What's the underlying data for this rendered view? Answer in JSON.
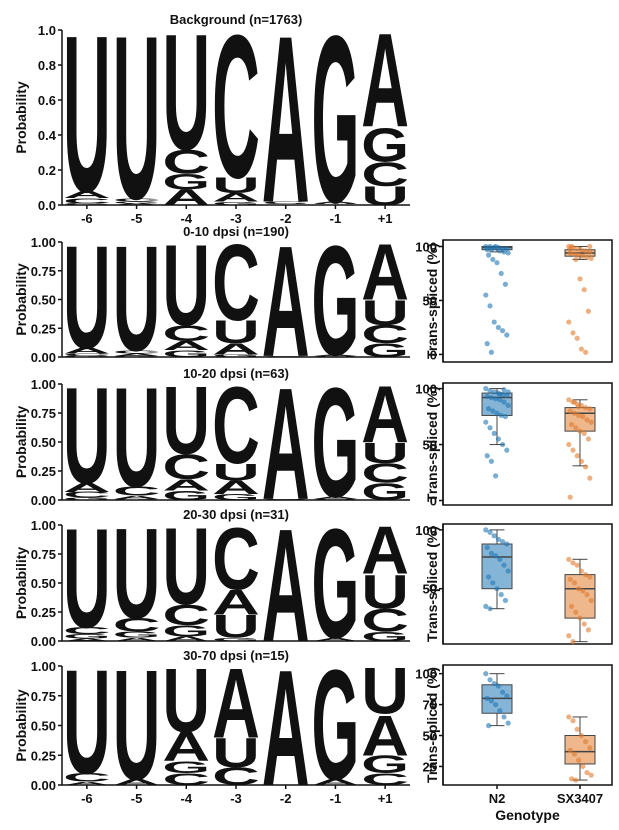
{
  "chart_data": [
    {
      "type": "logo",
      "title": "Background (n=1763)",
      "ylabel": "Probability",
      "categories": [
        "-6",
        "-5",
        "-4",
        "-3",
        "-2",
        "-1",
        "+1"
      ],
      "ylim": [
        0,
        1
      ],
      "yticks": [
        {
          "value": 0,
          "label": "0.0"
        },
        0.2,
        0.4,
        0.6,
        0.8,
        {
          "value": 1,
          "label": "1.0"
        }
      ],
      "series": [
        {
          "name": "A",
          "color": "#0d9e5c",
          "values": [
            0.04,
            0.01,
            0.09,
            0.05,
            0.98,
            0.01,
            0.55
          ]
        },
        {
          "name": "C",
          "color": "#1b74b8",
          "values": [
            0.03,
            0.02,
            0.14,
            0.84,
            0.01,
            0.005,
            0.14
          ]
        },
        {
          "name": "G",
          "color": "#f3e24b",
          "values": [
            0.01,
            0.01,
            0.09,
            0.02,
            0.005,
            0.98,
            0.2
          ]
        },
        {
          "name": "U",
          "color": "#d45f00",
          "values": [
            0.92,
            0.96,
            0.68,
            0.09,
            0.005,
            0.005,
            0.11
          ]
        }
      ]
    },
    {
      "type": "logo",
      "title": "0-10 dpsi (n=190)",
      "ylabel": "Probability",
      "ylim": [
        0,
        1
      ],
      "yticks": [
        {
          "value": 0,
          "label": "0.00"
        },
        0.25,
        {
          "value": 0.5,
          "label": "0.50"
        },
        0.75,
        {
          "value": 1,
          "label": "1.00"
        }
      ],
      "series": [
        {
          "name": "A",
          "color": "#0d9e5c",
          "values": [
            0.05,
            0.02,
            0.08,
            0.1,
            0.99,
            0.01,
            0.5
          ]
        },
        {
          "name": "C",
          "color": "#1b74b8",
          "values": [
            0.02,
            0.03,
            0.14,
            0.68,
            0.005,
            0.005,
            0.16
          ]
        },
        {
          "name": "G",
          "color": "#f3e24b",
          "values": [
            0.01,
            0.01,
            0.06,
            0.02,
            0.003,
            0.98,
            0.12
          ]
        },
        {
          "name": "U",
          "color": "#d45f00",
          "values": [
            0.92,
            0.94,
            0.72,
            0.2,
            0.002,
            0.005,
            0.22
          ]
        }
      ]
    },
    {
      "type": "box",
      "ylabel": "Trans-spliced (%)",
      "ylim": [
        -7,
        106
      ],
      "yticks": [
        0,
        50,
        100
      ],
      "boxes": [
        {
          "color": "#1f77b4",
          "whislo": 95,
          "q1": 97,
          "med": 99,
          "q3": 100,
          "whishi": 100,
          "points": [
            100,
            100,
            99,
            99,
            98,
            98,
            97,
            97,
            100,
            96,
            95,
            94,
            92,
            88,
            85,
            75,
            65,
            55,
            45,
            30,
            25,
            22,
            18,
            10,
            2
          ]
        },
        {
          "color": "#e07b2e",
          "whislo": 88,
          "q1": 91,
          "med": 94,
          "q3": 97,
          "whishi": 100,
          "points": [
            100,
            99,
            98,
            97,
            96,
            95,
            94,
            93,
            92,
            91,
            90,
            89,
            100,
            88,
            70,
            60,
            40,
            30,
            20,
            15,
            5,
            2,
            100,
            98
          ]
        }
      ]
    },
    {
      "type": "logo",
      "title": "10-20 dpsi (n=63)",
      "ylabel": "Probability",
      "ylim": [
        0,
        1
      ],
      "yticks": [
        {
          "value": 0,
          "label": "0.00"
        },
        0.25,
        {
          "value": 0.5,
          "label": "0.50"
        },
        0.75,
        {
          "value": 1,
          "label": "1.00"
        }
      ],
      "series": [
        {
          "name": "A",
          "color": "#0d9e5c",
          "values": [
            0.08,
            0.03,
            0.1,
            0.12,
            0.99,
            0.02,
            0.5
          ]
        },
        {
          "name": "C",
          "color": "#1b74b8",
          "values": [
            0.05,
            0.08,
            0.22,
            0.68,
            0.004,
            0.005,
            0.17
          ]
        },
        {
          "name": "G",
          "color": "#f3e24b",
          "values": [
            0.02,
            0.01,
            0.08,
            0.05,
            0.003,
            0.97,
            0.15
          ]
        },
        {
          "name": "U",
          "color": "#d45f00",
          "values": [
            0.85,
            0.88,
            0.6,
            0.15,
            0.003,
            0.005,
            0.18
          ]
        }
      ]
    },
    {
      "type": "box",
      "ylabel": "Trans-spliced (%)",
      "ylim": [
        -4,
        105
      ],
      "yticks": [
        0,
        50,
        100
      ],
      "boxes": [
        {
          "color": "#1f77b4",
          "whislo": 50,
          "q1": 76,
          "med": 92,
          "q3": 96,
          "whishi": 100,
          "points": [
            100,
            98,
            97,
            96,
            95,
            94,
            93,
            92,
            91,
            90,
            88,
            85,
            82,
            80,
            78,
            76,
            75,
            70,
            65,
            60,
            55,
            50,
            45,
            40,
            35,
            22,
            95,
            99,
            97
          ]
        },
        {
          "color": "#e07b2e",
          "whislo": 31,
          "q1": 62,
          "med": 78,
          "q3": 83,
          "whishi": 90,
          "points": [
            90,
            88,
            86,
            85,
            83,
            82,
            80,
            78,
            76,
            75,
            72,
            70,
            68,
            65,
            62,
            60,
            55,
            50,
            45,
            40,
            35,
            30,
            20,
            3,
            88,
            84
          ]
        }
      ]
    },
    {
      "type": "logo",
      "title": "20-30 dpsi (n=31)",
      "ylabel": "Probability",
      "ylim": [
        0,
        1
      ],
      "yticks": [
        {
          "value": 0,
          "label": "0.00"
        },
        0.25,
        {
          "value": 0.5,
          "label": "0.50"
        },
        0.75,
        {
          "value": 1,
          "label": "1.00"
        }
      ],
      "series": [
        {
          "name": "A",
          "color": "#0d9e5c",
          "values": [
            0.02,
            0.03,
            0.04,
            0.22,
            1,
            0.03,
            0.42
          ]
        },
        {
          "name": "C",
          "color": "#1b74b8",
          "values": [
            0.06,
            0.12,
            0.18,
            0.55,
            0,
            0,
            0.2
          ]
        },
        {
          "name": "G",
          "color": "#f3e24b",
          "values": [
            0.04,
            0.05,
            0.1,
            0.03,
            0,
            0.97,
            0.08
          ]
        },
        {
          "name": "U",
          "color": "#d45f00",
          "values": [
            0.88,
            0.8,
            0.68,
            0.2,
            0,
            0,
            0.3
          ]
        }
      ]
    },
    {
      "type": "box",
      "ylabel": "Trans-spliced (%)",
      "ylim": [
        3,
        105
      ],
      "yticks": [
        50,
        100
      ],
      "boxes": [
        {
          "color": "#1f77b4",
          "whislo": 33,
          "q1": 50,
          "med": 77,
          "q3": 88,
          "whishi": 100,
          "points": [
            100,
            98,
            95,
            92,
            90,
            88,
            85,
            80,
            78,
            75,
            70,
            65,
            60,
            55,
            50,
            45,
            40,
            35,
            33
          ]
        },
        {
          "color": "#e07b2e",
          "whislo": 5,
          "q1": 25,
          "med": 50,
          "q3": 62,
          "whishi": 75,
          "points": [
            75,
            72,
            70,
            65,
            62,
            60,
            58,
            55,
            50,
            48,
            45,
            40,
            35,
            30,
            25,
            20,
            15,
            10,
            5
          ]
        }
      ]
    },
    {
      "type": "logo",
      "title": "30-70 dpsi (n=15)",
      "ylabel": "Probability",
      "categories": [
        "-6",
        "-5",
        "-4",
        "-3",
        "-2",
        "-1",
        "+1"
      ],
      "ylim": [
        0,
        1
      ],
      "yticks": [
        {
          "value": 0,
          "label": "0.00"
        },
        0.25,
        {
          "value": 0.5,
          "label": "0.50"
        },
        0.75,
        {
          "value": 1,
          "label": "1.00"
        }
      ],
      "series": [
        {
          "name": "A",
          "color": "#0d9e5c",
          "values": [
            0.03,
            0.05,
            0.25,
            0.6,
            1,
            0.05,
            0.35
          ]
        },
        {
          "name": "C",
          "color": "#1b74b8",
          "values": [
            0.07,
            0,
            0.1,
            0.15,
            0,
            0,
            0.1
          ]
        },
        {
          "name": "G",
          "color": "#f3e24b",
          "values": [
            0,
            0,
            0.1,
            0,
            0,
            0.95,
            0.15
          ]
        },
        {
          "name": "U",
          "color": "#d45f00",
          "values": [
            0.9,
            0.95,
            0.55,
            0.25,
            0,
            0,
            0.4
          ]
        }
      ]
    },
    {
      "type": "box",
      "ylabel": "Trans-spliced (%)",
      "ylim": [
        10,
        107
      ],
      "yticks": [
        25,
        50,
        75,
        100
      ],
      "categories": [
        "N2",
        "SX3407"
      ],
      "xlabel": "Genotype",
      "boxes": [
        {
          "color": "#1f77b4",
          "whislo": 58,
          "q1": 68,
          "med": 80,
          "q3": 91,
          "whishi": 100,
          "points": [
            100,
            95,
            92,
            90,
            85,
            82,
            80,
            78,
            75,
            70,
            65,
            60,
            58
          ]
        },
        {
          "color": "#e07b2e",
          "whislo": 14,
          "q1": 27,
          "med": 37,
          "q3": 50,
          "whishi": 65,
          "points": [
            65,
            62,
            55,
            50,
            45,
            40,
            38,
            35,
            30,
            25,
            20,
            18,
            15,
            14
          ]
        }
      ]
    }
  ]
}
